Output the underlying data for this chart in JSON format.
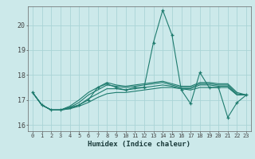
{
  "xlabel": "Humidex (Indice chaleur)",
  "xlim": [
    -0.5,
    23.5
  ],
  "ylim": [
    15.75,
    20.75
  ],
  "yticks": [
    16,
    17,
    18,
    19,
    20
  ],
  "xticks": [
    0,
    1,
    2,
    3,
    4,
    5,
    6,
    7,
    8,
    9,
    10,
    11,
    12,
    13,
    14,
    15,
    16,
    17,
    18,
    19,
    20,
    21,
    22,
    23
  ],
  "bg_color": "#cce9ea",
  "grid_color": "#aad4d6",
  "line_color": "#1e7b6e",
  "lines": [
    {
      "x": [
        0,
        1,
        2,
        3,
        4,
        5,
        6,
        7,
        8,
        9,
        10,
        11,
        12,
        13,
        14,
        15,
        16,
        17,
        18,
        19,
        20,
        21,
        22,
        23
      ],
      "y": [
        17.3,
        16.8,
        16.6,
        16.6,
        16.7,
        16.8,
        17.0,
        17.5,
        17.65,
        17.5,
        17.4,
        17.5,
        17.5,
        19.3,
        20.6,
        19.6,
        17.4,
        16.85,
        18.1,
        17.5,
        17.5,
        16.3,
        16.9,
        17.2
      ],
      "marker": true
    },
    {
      "x": [
        0,
        1,
        2,
        3,
        4,
        5,
        6,
        7,
        8,
        9,
        10,
        11,
        12,
        13,
        14,
        15,
        16,
        17,
        18,
        19,
        20,
        21,
        22,
        23
      ],
      "y": [
        17.3,
        16.8,
        16.6,
        16.6,
        16.65,
        16.75,
        16.9,
        17.1,
        17.25,
        17.3,
        17.3,
        17.35,
        17.4,
        17.45,
        17.5,
        17.5,
        17.45,
        17.4,
        17.5,
        17.5,
        17.5,
        17.5,
        17.2,
        17.2
      ],
      "marker": false
    },
    {
      "x": [
        0,
        1,
        2,
        3,
        4,
        5,
        6,
        7,
        8,
        9,
        10,
        11,
        12,
        13,
        14,
        15,
        16,
        17,
        18,
        19,
        20,
        21,
        22,
        23
      ],
      "y": [
        17.3,
        16.8,
        16.6,
        16.6,
        16.65,
        16.8,
        17.05,
        17.25,
        17.45,
        17.45,
        17.4,
        17.45,
        17.5,
        17.55,
        17.6,
        17.55,
        17.45,
        17.45,
        17.6,
        17.6,
        17.55,
        17.55,
        17.2,
        17.2
      ],
      "marker": false
    },
    {
      "x": [
        0,
        1,
        2,
        3,
        4,
        5,
        6,
        7,
        8,
        9,
        10,
        11,
        12,
        13,
        14,
        15,
        16,
        17,
        18,
        19,
        20,
        21,
        22,
        23
      ],
      "y": [
        17.3,
        16.8,
        16.6,
        16.6,
        16.7,
        16.9,
        17.2,
        17.4,
        17.6,
        17.55,
        17.5,
        17.55,
        17.6,
        17.65,
        17.7,
        17.6,
        17.5,
        17.5,
        17.65,
        17.65,
        17.6,
        17.6,
        17.25,
        17.2
      ],
      "marker": false
    },
    {
      "x": [
        0,
        1,
        2,
        3,
        4,
        5,
        6,
        7,
        8,
        9,
        10,
        11,
        12,
        13,
        14,
        15,
        16,
        17,
        18,
        19,
        20,
        21,
        22,
        23
      ],
      "y": [
        17.3,
        16.8,
        16.6,
        16.6,
        16.75,
        17.0,
        17.3,
        17.5,
        17.7,
        17.6,
        17.55,
        17.6,
        17.65,
        17.7,
        17.75,
        17.65,
        17.55,
        17.55,
        17.7,
        17.7,
        17.65,
        17.65,
        17.3,
        17.2
      ],
      "marker": false
    }
  ]
}
